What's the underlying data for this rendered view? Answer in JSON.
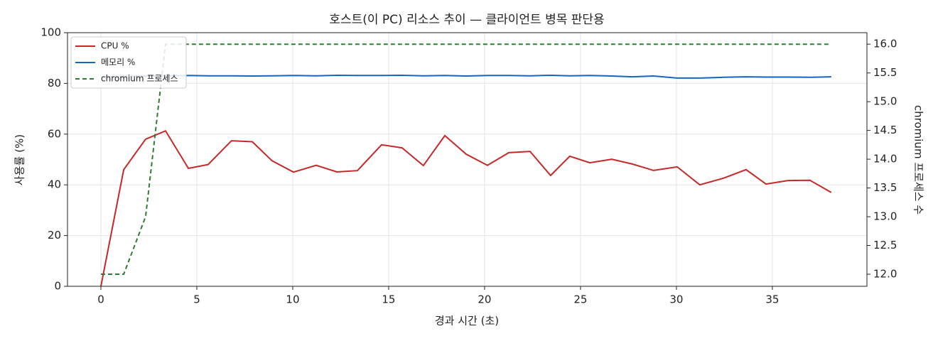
{
  "chart_data": {
    "type": "line",
    "title": "호스트(이 PC) 리소스 추이 — 클라이언트 병목 판단용",
    "xlabel": "경과 시간 (초)",
    "ylabel": "사용률 (%)",
    "y2label": "chromium 프로세스 수",
    "x": [
      0,
      1.19,
      2.33,
      3.37,
      4.56,
      5.59,
      6.81,
      7.89,
      8.92,
      10.04,
      11.22,
      12.3,
      13.37,
      14.63,
      15.7,
      16.81,
      17.93,
      19.04,
      20.15,
      21.26,
      22.37,
      23.44,
      24.44,
      25.48,
      26.63,
      27.7,
      28.81,
      30.04,
      31.22,
      32.44,
      33.63,
      34.67,
      35.81,
      36.96,
      38.07
    ],
    "series": [
      {
        "name": "CPU %",
        "color": "#c62828",
        "dash": false,
        "values": [
          0,
          46,
          58,
          61.3,
          46.5,
          48,
          57.4,
          57,
          49.5,
          45,
          47.7,
          45.1,
          45.6,
          55.8,
          54.6,
          47.6,
          59.4,
          52.1,
          47.7,
          52.7,
          53.2,
          43.7,
          51.3,
          48.7,
          50.1,
          48.2,
          45.7,
          47.1,
          40,
          42.6,
          46,
          40.3,
          41.7,
          41.8,
          37
        ]
      },
      {
        "name": "메모리 %",
        "color": "#1565c0",
        "dash": false,
        "values": [
          82.6,
          82.8,
          82.9,
          83,
          83.1,
          83,
          83,
          82.9,
          83,
          83.1,
          83,
          83.2,
          83.1,
          83.1,
          83.2,
          83,
          83.1,
          82.9,
          83.1,
          83.1,
          83,
          83.2,
          83,
          83.1,
          82.9,
          82.6,
          82.9,
          82.1,
          82.1,
          82.4,
          82.6,
          82.5,
          82.5,
          82.4,
          82.6
        ]
      },
      {
        "name": "chromium 프로세스",
        "color": "#2e7d32",
        "dash": true,
        "axis": "y2",
        "values": [
          12,
          12,
          13,
          16,
          16,
          16,
          16,
          16,
          16,
          16,
          16,
          16,
          16,
          16,
          16,
          16,
          16,
          16,
          16,
          16,
          16,
          16,
          16,
          16,
          16,
          16,
          16,
          16,
          16,
          16,
          16,
          16,
          16,
          16,
          16
        ]
      }
    ],
    "xlim": [
      -1.74,
      39.93
    ],
    "xticks": [
      0,
      5,
      10,
      15,
      20,
      25,
      30,
      35
    ],
    "ylim": [
      0,
      100
    ],
    "yticks": [
      0,
      20,
      40,
      60,
      80,
      100
    ],
    "y2lim": [
      11.79,
      16.2
    ],
    "y2ticks": [
      {
        "value": 12,
        "label": "12.0"
      },
      12.5,
      {
        "value": 13,
        "label": "13.0"
      },
      13.5,
      {
        "value": 14,
        "label": "14.0"
      },
      14.5,
      {
        "value": 15,
        "label": "15.0"
      },
      15.5,
      {
        "value": 16,
        "label": "16.0"
      }
    ],
    "grid": true,
    "legend": "upper-left"
  }
}
